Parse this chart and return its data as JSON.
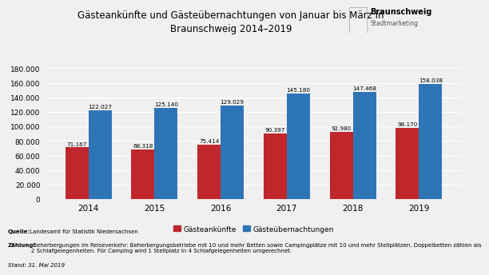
{
  "title_line1": "Gästeankünfte und Gästeübernachtungen von Januar bis März in",
  "title_line2": "Braunschweig 2014–2019",
  "years": [
    "2014",
    "2015",
    "2016",
    "2017",
    "2018",
    "2019"
  ],
  "gaesteankunfte": [
    71167,
    68318,
    75414,
    90397,
    92980,
    98170
  ],
  "gaesteuebernachtungen": [
    122027,
    125140,
    129029,
    145180,
    147468,
    158038
  ],
  "bar_color_red": "#c0272d",
  "bar_color_blue": "#2e75b6",
  "ylim": [
    0,
    180000
  ],
  "yticks": [
    0,
    20000,
    40000,
    60000,
    80000,
    100000,
    120000,
    140000,
    160000,
    180000
  ],
  "legend_ankuenfte": "Gästeankünfte",
  "legend_uebernachtungen": "Gästeübernachtungen",
  "source_bold": "Quelle:",
  "source_rest": " Landesamt für Statistik Niedersachsen",
  "zaehlung_bold": "Zählung:",
  "zaehlung_rest": " Beherbergungen im Reiseverkehr: Beherbergungsbetriebe mit 10 und mehr Betten sowie Campingplätze mit 10 und mehr Stellplätzen. Doppelbetten zählen als\n2 Schlafgelegenheiten. Für Camping wird 1 Stellplatz in 4 Schlafgelegenheiten umgerechnet.",
  "stand_text": "Stand: 31. Mai 2019",
  "background_color": "#f0f0f0",
  "bar_width": 0.35,
  "logo_text_line1": "Braunschweig",
  "logo_text_line2": "Stadtmarketing"
}
